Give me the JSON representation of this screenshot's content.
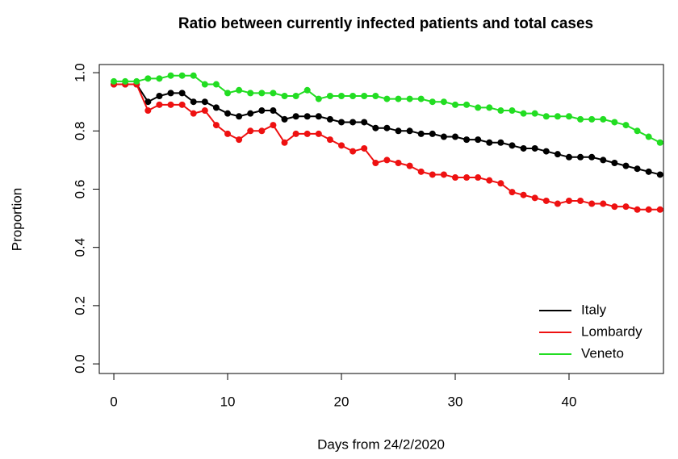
{
  "chart_data": {
    "type": "scatter",
    "title": "Ratio between currently infected patients and total cases",
    "x_label": "Days from 24/2/2020",
    "y_label": "Proportion",
    "x": [
      0,
      1,
      2,
      3,
      4,
      5,
      6,
      7,
      8,
      9,
      10,
      11,
      12,
      13,
      14,
      15,
      16,
      17,
      18,
      19,
      20,
      21,
      22,
      23,
      24,
      25,
      26,
      27,
      28,
      29,
      30,
      31,
      32,
      33,
      34,
      35,
      36,
      37,
      38,
      39,
      40,
      41,
      42,
      43,
      44,
      45,
      46,
      47,
      48
    ],
    "series": [
      {
        "name": "Italy",
        "color": "#000000",
        "values": [
          0.96,
          0.96,
          0.96,
          0.9,
          0.92,
          0.93,
          0.93,
          0.9,
          0.9,
          0.88,
          0.86,
          0.85,
          0.86,
          0.87,
          0.87,
          0.84,
          0.85,
          0.85,
          0.85,
          0.84,
          0.83,
          0.83,
          0.83,
          0.81,
          0.81,
          0.8,
          0.8,
          0.79,
          0.79,
          0.78,
          0.78,
          0.77,
          0.77,
          0.76,
          0.76,
          0.75,
          0.74,
          0.74,
          0.73,
          0.72,
          0.71,
          0.71,
          0.71,
          0.7,
          0.69,
          0.68,
          0.67,
          0.66,
          0.65
        ]
      },
      {
        "name": "Lombardy",
        "color": "#ee1111",
        "values": [
          0.96,
          0.96,
          0.96,
          0.87,
          0.89,
          0.89,
          0.89,
          0.86,
          0.87,
          0.82,
          0.79,
          0.77,
          0.8,
          0.8,
          0.82,
          0.76,
          0.79,
          0.79,
          0.79,
          0.77,
          0.75,
          0.73,
          0.74,
          0.69,
          0.7,
          0.69,
          0.68,
          0.66,
          0.65,
          0.65,
          0.64,
          0.64,
          0.64,
          0.63,
          0.62,
          0.59,
          0.58,
          0.57,
          0.56,
          0.55,
          0.56,
          0.56,
          0.55,
          0.55,
          0.54,
          0.54,
          0.53,
          0.53,
          0.53
        ]
      },
      {
        "name": "Veneto",
        "color": "#22dd22",
        "values": [
          0.97,
          0.97,
          0.97,
          0.98,
          0.98,
          0.99,
          0.99,
          0.99,
          0.96,
          0.96,
          0.93,
          0.94,
          0.93,
          0.93,
          0.93,
          0.92,
          0.92,
          0.94,
          0.91,
          0.92,
          0.92,
          0.92,
          0.92,
          0.92,
          0.91,
          0.91,
          0.91,
          0.91,
          0.9,
          0.9,
          0.89,
          0.89,
          0.88,
          0.88,
          0.87,
          0.87,
          0.86,
          0.86,
          0.85,
          0.85,
          0.85,
          0.84,
          0.84,
          0.84,
          0.83,
          0.82,
          0.8,
          0.78,
          0.76
        ]
      }
    ],
    "xlim": [
      -1.28,
      48.3
    ],
    "ylim": [
      -0.033,
      1.028
    ],
    "xticks": [
      0,
      10,
      20,
      30,
      40
    ],
    "yticks": [
      {
        "value": 0,
        "label": "0.0"
      },
      0.2,
      0.4,
      0.6,
      0.8,
      {
        "value": 1,
        "label": "1.0"
      }
    ],
    "legend": "bottom-right"
  }
}
